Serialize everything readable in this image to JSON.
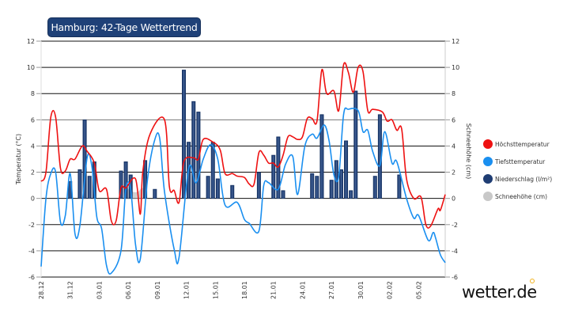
{
  "chart_data": {
    "type": "line",
    "title": "Hamburg: 42-Tage Wettertrend",
    "ylabel": "Temperatur (°C)",
    "y2label": "Schneehöhe (cm)",
    "ylim": [
      -6,
      12
    ],
    "y2lim": [
      -6,
      12
    ],
    "yticks": [
      "12",
      "10",
      "8",
      "6",
      "4",
      "2",
      "0",
      "-2",
      "-4",
      "-6"
    ],
    "xlim": [
      "28.12 00:00",
      "07.02 18:00"
    ],
    "xticks": [
      "28.12",
      "31.12",
      "03.01",
      "06.01",
      "09.01",
      "12.01",
      "15.01",
      "18.01",
      "21.01",
      "24.01",
      "27.01",
      "30.01",
      "02.02",
      "05.02"
    ],
    "grid": true,
    "legend_position": "right",
    "series": [
      {
        "name": "Höchsttemperatur",
        "type": "line",
        "color": "#ee1111",
        "points": [
          [
            "28.12 00:00",
            1.3
          ],
          [
            "28.12 12:00",
            2.0
          ],
          [
            "29.12 00:00",
            6.2
          ],
          [
            "29.12 12:00",
            6.2
          ],
          [
            "30.12 00:00",
            2.3
          ],
          [
            "30.12 12:00",
            2.1
          ],
          [
            "31.12 00:00",
            3.0
          ],
          [
            "31.12 12:00",
            3.0
          ],
          [
            "01.01 06:00",
            4.0
          ],
          [
            "01.01 18:00",
            3.6
          ],
          [
            "02.01 12:00",
            2.7
          ],
          [
            "03.01 00:00",
            0.6
          ],
          [
            "03.01 18:00",
            0.7
          ],
          [
            "04.01 06:00",
            -1.7
          ],
          [
            "04.01 18:00",
            -1.7
          ],
          [
            "05.01 06:00",
            0.8
          ],
          [
            "05.01 18:00",
            0.8
          ],
          [
            "06.01 18:00",
            1.5
          ],
          [
            "07.01 06:00",
            -1.2
          ],
          [
            "07.01 12:00",
            2.0
          ],
          [
            "08.01 06:00",
            4.9
          ],
          [
            "09.01 18:00",
            6.0
          ],
          [
            "10.01 06:00",
            0.9
          ],
          [
            "10.01 18:00",
            0.6
          ],
          [
            "11.01 06:00",
            -0.3
          ],
          [
            "11.01 18:00",
            2.8
          ],
          [
            "12.01 18:00",
            3.1
          ],
          [
            "13.01 06:00",
            3.0
          ],
          [
            "13.01 18:00",
            4.5
          ],
          [
            "14.01 18:00",
            4.3
          ],
          [
            "15.01 12:00",
            3.7
          ],
          [
            "16.01 00:00",
            1.9
          ],
          [
            "16.01 18:00",
            1.9
          ],
          [
            "17.01 06:00",
            1.7
          ],
          [
            "18.01 00:00",
            1.6
          ],
          [
            "18.01 12:00",
            1.1
          ],
          [
            "19.01 00:00",
            1.1
          ],
          [
            "19.01 12:00",
            3.5
          ],
          [
            "20.01 00:00",
            3.3
          ],
          [
            "20.01 12:00",
            2.7
          ],
          [
            "21.01 00:00",
            2.7
          ],
          [
            "21.01 12:00",
            2.4
          ],
          [
            "22.01 00:00",
            3.3
          ],
          [
            "22.01 12:00",
            4.7
          ],
          [
            "23.01 00:00",
            4.7
          ],
          [
            "23.01 12:00",
            4.5
          ],
          [
            "24.01 00:00",
            4.7
          ],
          [
            "24.01 12:00",
            6.1
          ],
          [
            "25.01 00:00",
            6.1
          ],
          [
            "25.01 12:00",
            5.9
          ],
          [
            "26.01 00:00",
            9.8
          ],
          [
            "26.01 12:00",
            8.0
          ],
          [
            "27.01 06:00",
            8.2
          ],
          [
            "27.01 18:00",
            6.7
          ],
          [
            "28.01 06:00",
            10.2
          ],
          [
            "28.01 18:00",
            9.6
          ],
          [
            "29.01 06:00",
            8.1
          ],
          [
            "29.01 18:00",
            10.0
          ],
          [
            "30.01 06:00",
            9.7
          ],
          [
            "30.01 18:00",
            6.7
          ],
          [
            "31.01 06:00",
            6.8
          ],
          [
            "01.02 06:00",
            6.6
          ],
          [
            "01.02 18:00",
            5.9
          ],
          [
            "02.02 06:00",
            6.0
          ],
          [
            "02.02 18:00",
            5.2
          ],
          [
            "03.02 06:00",
            5.3
          ],
          [
            "03.02 18:00",
            1.5
          ],
          [
            "04.02 12:00",
            0.0
          ],
          [
            "05.02 06:00",
            0.1
          ],
          [
            "05.02 18:00",
            -2.0
          ],
          [
            "06.02 06:00",
            -2.1
          ],
          [
            "07.02 00:00",
            -0.8
          ],
          [
            "07.02 06:00",
            -0.9
          ],
          [
            "07.02 18:00",
            0.3
          ]
        ]
      },
      {
        "name": "Tiefsttemperatur",
        "type": "line",
        "color": "#1a8ff0",
        "points": [
          [
            "28.12 00:00",
            -5.2
          ],
          [
            "28.12 12:00",
            0.0
          ],
          [
            "29.12 00:00",
            1.9
          ],
          [
            "29.12 12:00",
            2.0
          ],
          [
            "30.12 00:00",
            -1.8
          ],
          [
            "30.12 12:00",
            -1.3
          ],
          [
            "31.12 00:00",
            1.9
          ],
          [
            "31.12 12:00",
            -2.7
          ],
          [
            "01.01 00:00",
            -2.1
          ],
          [
            "01.01 18:00",
            3.1
          ],
          [
            "02.01 06:00",
            2.4
          ],
          [
            "02.01 18:00",
            -1.4
          ],
          [
            "03.01 06:00",
            -2.3
          ],
          [
            "03.01 18:00",
            -5.1
          ],
          [
            "04.01 06:00",
            -5.7
          ],
          [
            "05.01 06:00",
            -4.0
          ],
          [
            "05.01 18:00",
            0.7
          ],
          [
            "06.01 06:00",
            0.7
          ],
          [
            "06.01 18:00",
            -3.5
          ],
          [
            "07.01 06:00",
            -4.6
          ],
          [
            "08.01 00:00",
            1.5
          ],
          [
            "08.01 18:00",
            4.5
          ],
          [
            "09.01 06:00",
            4.6
          ],
          [
            "09.01 18:00",
            0.5
          ],
          [
            "10.01 18:00",
            -3.9
          ],
          [
            "11.01 06:00",
            -4.5
          ],
          [
            "12.01 06:00",
            2.3
          ],
          [
            "13.01 00:00",
            1.2
          ],
          [
            "13.01 18:00",
            3.0
          ],
          [
            "14.01 12:00",
            4.1
          ],
          [
            "15.01 06:00",
            3.0
          ],
          [
            "16.01 00:00",
            -0.5
          ],
          [
            "17.01 06:00",
            -0.3
          ],
          [
            "18.01 00:00",
            -1.6
          ],
          [
            "18.01 12:00",
            -1.9
          ],
          [
            "19.01 12:00",
            -2.5
          ],
          [
            "20.01 00:00",
            1.0
          ],
          [
            "20.01 12:00",
            1.2
          ],
          [
            "21.01 12:00",
            0.7
          ],
          [
            "22.01 06:00",
            2.6
          ],
          [
            "23.01 00:00",
            3.2
          ],
          [
            "23.01 12:00",
            0.3
          ],
          [
            "24.01 06:00",
            4.0
          ],
          [
            "25.01 00:00",
            4.9
          ],
          [
            "25.01 12:00",
            4.6
          ],
          [
            "26.01 06:00",
            5.6
          ],
          [
            "26.01 18:00",
            4.4
          ],
          [
            "27.01 06:00",
            1.8
          ],
          [
            "27.01 18:00",
            1.7
          ],
          [
            "28.01 06:00",
            6.4
          ],
          [
            "28.01 18:00",
            6.8
          ],
          [
            "29.01 18:00",
            6.7
          ],
          [
            "30.01 06:00",
            5.1
          ],
          [
            "30.01 18:00",
            5.2
          ],
          [
            "31.01 06:00",
            3.6
          ],
          [
            "01.02 00:00",
            2.5
          ],
          [
            "01.02 12:00",
            5.1
          ],
          [
            "02.02 06:00",
            2.7
          ],
          [
            "02.02 18:00",
            2.8
          ],
          [
            "03.02 18:00",
            0.0
          ],
          [
            "04.02 12:00",
            -1.5
          ],
          [
            "05.02 00:00",
            -1.3
          ],
          [
            "06.02 00:00",
            -3.2
          ],
          [
            "06.02 12:00",
            -2.6
          ],
          [
            "06.02 18:00",
            -3.0
          ],
          [
            "07.02 06:00",
            -4.3
          ],
          [
            "07.02 18:00",
            -4.9
          ]
        ]
      },
      {
        "name": "Niederschlag (l/m²)",
        "type": "bar",
        "color": "#1f3d73",
        "points": [
          [
            "31.12 00:00",
            1.3
          ],
          [
            "01.01 00:00",
            2.2
          ],
          [
            "01.01 12:00",
            6.0
          ],
          [
            "02.01 00:00",
            1.7
          ],
          [
            "02.01 12:00",
            2.8
          ],
          [
            "05.01 06:00",
            2.1
          ],
          [
            "05.01 18:00",
            2.8
          ],
          [
            "06.01 06:00",
            1.8
          ],
          [
            "07.01 18:00",
            2.9
          ],
          [
            "08.01 18:00",
            0.7
          ],
          [
            "11.01 18:00",
            9.8
          ],
          [
            "12.01 06:00",
            4.3
          ],
          [
            "12.01 18:00",
            7.4
          ],
          [
            "13.01 06:00",
            6.6
          ],
          [
            "14.01 06:00",
            1.7
          ],
          [
            "14.01 18:00",
            4.3
          ],
          [
            "15.01 06:00",
            1.5
          ],
          [
            "16.01 18:00",
            1.0
          ],
          [
            "19.01 12:00",
            2.0
          ],
          [
            "21.01 00:00",
            3.3
          ],
          [
            "21.01 12:00",
            4.7
          ],
          [
            "22.01 00:00",
            0.6
          ],
          [
            "25.01 00:00",
            1.9
          ],
          [
            "25.01 12:00",
            1.7
          ],
          [
            "26.01 00:00",
            6.4
          ],
          [
            "27.01 00:00",
            1.4
          ],
          [
            "27.01 12:00",
            2.9
          ],
          [
            "28.01 00:00",
            2.2
          ],
          [
            "28.01 12:00",
            4.4
          ],
          [
            "29.01 00:00",
            0.6
          ],
          [
            "29.01 12:00",
            8.2
          ],
          [
            "31.01 12:00",
            1.7
          ],
          [
            "01.02 00:00",
            6.4
          ],
          [
            "03.02 00:00",
            1.8
          ]
        ]
      },
      {
        "name": "Schneehöhe (cm)",
        "type": "area",
        "color": "#c8c8c8",
        "points": [
          [
            "05.01 12:00",
            0.0
          ],
          [
            "06.01 00:00",
            0.7
          ],
          [
            "06.01 12:00",
            0.5
          ],
          [
            "07.01 00:00",
            0.5
          ],
          [
            "07.01 12:00",
            0.8
          ],
          [
            "08.01 00:00",
            0.0
          ]
        ]
      }
    ]
  },
  "brand": {
    "logo": "wetter.de",
    "accent": "#f2b21c"
  }
}
